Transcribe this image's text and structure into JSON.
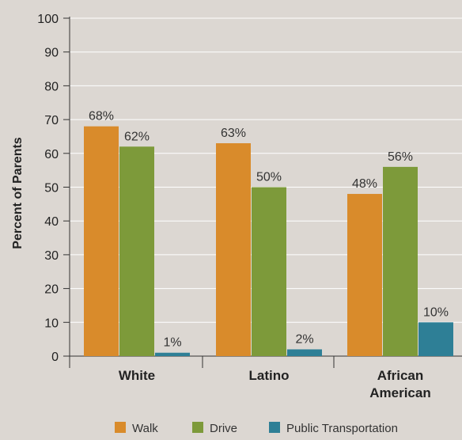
{
  "chart_data": {
    "type": "bar",
    "categories": [
      [
        "White"
      ],
      [
        "Latino"
      ],
      [
        "African",
        "American"
      ]
    ],
    "series": [
      {
        "name": "Walk",
        "values": [
          68,
          63,
          48
        ],
        "labels": [
          "68%",
          "63%",
          "48%"
        ],
        "color": "#d98b2b"
      },
      {
        "name": "Drive",
        "values": [
          62,
          50,
          56
        ],
        "labels": [
          "62%",
          "50%",
          "56%"
        ],
        "color": "#7d9a3a"
      },
      {
        "name": "Public Transportation",
        "values": [
          1,
          2,
          10
        ],
        "labels": [
          "1%",
          "2%",
          "10%"
        ],
        "color": "#2e7f96"
      }
    ],
    "ylabel": "Percent of Parents",
    "ylim": [
      0,
      100
    ],
    "yticks": [
      0,
      10,
      20,
      30,
      40,
      50,
      60,
      70,
      80,
      90,
      100
    ],
    "grid": true,
    "legend_position": "bottom"
  }
}
